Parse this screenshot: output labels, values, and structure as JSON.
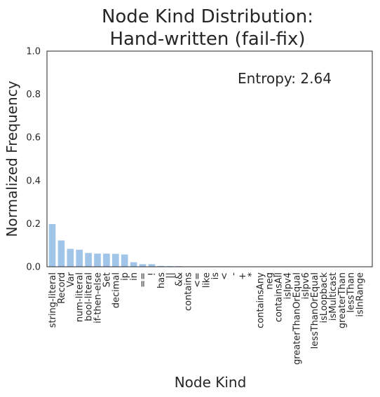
{
  "chart_data": {
    "type": "bar",
    "title_line1": "Node Kind Distribution:",
    "title_line2": "Hand-written (fail-fix)",
    "xlabel": "Node Kind",
    "ylabel": "Normalized Frequency",
    "annotation": "Entropy: 2.64",
    "ylim": [
      0,
      1.0
    ],
    "yticks": [
      "0.0",
      "0.2",
      "0.4",
      "0.6",
      "0.8",
      "1.0"
    ],
    "grid": false,
    "bar_color": "#a1c4e9",
    "categories": [
      "string-literal",
      "Record",
      "Var",
      "num-literal",
      "bool-literal",
      "if-then-else",
      "Set",
      "decimal",
      "ip",
      "in",
      "==",
      "!",
      "has",
      "||",
      "&&",
      "contains",
      "<=",
      "like",
      "is",
      "<",
      "-",
      "+",
      "*",
      "containsAny",
      "neg",
      "containsAll",
      "isIpv4",
      "greaterThanOrEqual",
      "isIpv6",
      "lessThanOrEqual",
      "isLoopback",
      "isMulticast",
      "greaterThan",
      "lessThan",
      "isInRange"
    ],
    "values": [
      0.198,
      0.122,
      0.083,
      0.079,
      0.064,
      0.061,
      0.061,
      0.06,
      0.057,
      0.021,
      0.012,
      0.012,
      0.004,
      0.003,
      0.003,
      0.002,
      0.002,
      0.002,
      0.002,
      0.002,
      0.001,
      0.001,
      0.001,
      0.001,
      0.001,
      0.001,
      0.001,
      0.001,
      0.001,
      0.001,
      0.001,
      0.001,
      0.001,
      0.001,
      0.001
    ]
  }
}
